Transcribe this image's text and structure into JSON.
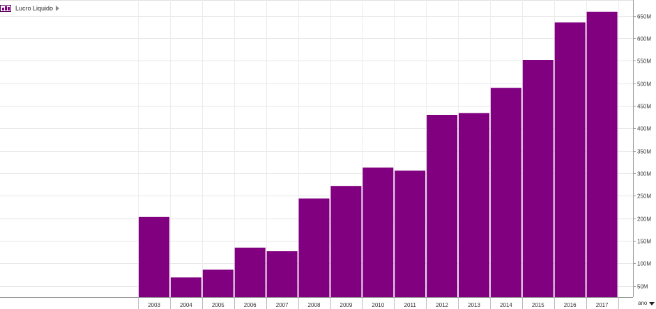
{
  "legend": {
    "label": "Lucro Liquido",
    "icon": "bar-chart-icon",
    "color": "#800080"
  },
  "axis_menu": {
    "label": "ano"
  },
  "chart_data": {
    "type": "bar",
    "title": "",
    "xlabel": "ano",
    "ylabel": "",
    "categories": [
      "2003",
      "2004",
      "2005",
      "2006",
      "2007",
      "2008",
      "2009",
      "2010",
      "2011",
      "2012",
      "2013",
      "2014",
      "2015",
      "2016",
      "2017"
    ],
    "series": [
      {
        "name": "Lucro Liquido",
        "color": "#800080",
        "values": [
          203,
          69,
          86,
          135,
          127,
          244,
          272,
          313,
          306,
          430,
          434,
          490,
          552,
          635,
          659
        ]
      }
    ],
    "ylim": [
      25,
      685
    ],
    "yticks": [
      50,
      100,
      150,
      200,
      250,
      300,
      350,
      400,
      450,
      500,
      550,
      600,
      650
    ],
    "ytick_labels": [
      "50M",
      "100M",
      "150M",
      "200M",
      "250M",
      "300M",
      "350M",
      "400M",
      "450M",
      "500M",
      "550M",
      "600M",
      "650M"
    ],
    "grid": true
  }
}
